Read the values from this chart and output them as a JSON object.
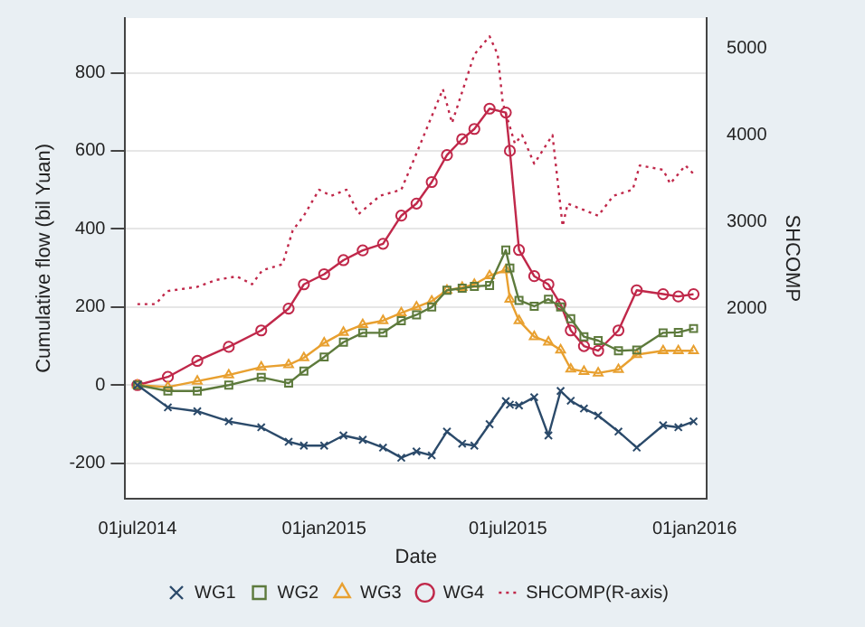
{
  "chart_data": {
    "type": "line",
    "xlabel": "Date",
    "ylabel": "Cumulative flow (bil Yuan)",
    "y2label": "SHCOMP",
    "x": [
      "2014-07-01",
      "2014-07-31",
      "2014-08-29",
      "2014-09-29",
      "2014-10-31",
      "2014-11-27",
      "2014-12-12",
      "2015-01-01",
      "2015-01-20",
      "2015-02-08",
      "2015-02-28",
      "2015-03-18",
      "2015-04-02",
      "2015-04-17",
      "2015-05-02",
      "2015-05-17",
      "2015-05-29",
      "2015-06-13",
      "2015-06-29",
      "2015-07-03",
      "2015-07-12",
      "2015-07-27",
      "2015-08-10",
      "2015-08-22",
      "2015-09-01",
      "2015-09-14",
      "2015-09-28",
      "2015-10-18",
      "2015-11-05",
      "2015-12-01",
      "2015-12-16",
      "2015-12-31"
    ],
    "series": [
      {
        "name": "WG1",
        "color": "#2b4a6a",
        "marker": "cross",
        "values": [
          0,
          -57,
          -67,
          -93,
          -108,
          -145,
          -155,
          -155,
          -129,
          -140,
          -160,
          -186,
          -170,
          -180,
          -119,
          -150,
          -155,
          -100,
          -41,
          -50,
          -52,
          -31,
          -129,
          -15,
          -40,
          -60,
          -78,
          -119,
          -160,
          -103,
          -108,
          -93
        ]
      },
      {
        "name": "WG2",
        "color": "#5d7a3c",
        "marker": "square",
        "values": [
          0,
          -15,
          -15,
          0,
          20,
          5,
          36,
          72,
          110,
          134,
          134,
          165,
          180,
          200,
          243,
          248,
          253,
          255,
          346,
          300,
          217,
          202,
          220,
          200,
          170,
          124,
          114,
          88,
          90,
          134,
          135,
          145
        ]
      },
      {
        "name": "WG3",
        "color": "#e8a030",
        "marker": "triangle",
        "values": [
          0,
          -5,
          10,
          26,
          46,
          52,
          70,
          108,
          135,
          155,
          165,
          185,
          200,
          215,
          243,
          250,
          258,
          280,
          295,
          220,
          165,
          124,
          110,
          90,
          41,
          35,
          31,
          40,
          78,
          88,
          88,
          88
        ]
      },
      {
        "name": "WG4",
        "color": "#c0284a",
        "marker": "circle",
        "values": [
          0,
          21,
          62,
          98,
          140,
          196,
          258,
          284,
          320,
          345,
          362,
          434,
          465,
          520,
          589,
          630,
          656,
          708,
          698,
          600,
          346,
          279,
          258,
          207,
          140,
          100,
          88,
          140,
          243,
          233,
          227,
          233
        ]
      },
      {
        "name": "SHCOMP(R-axis)",
        "color": "#c0284a",
        "marker": "none",
        "line_style": "dotted",
        "axis": "y2",
        "x": [
          "2014-07-01",
          "2014-07-19",
          "2014-07-30",
          "2014-08-29",
          "2014-09-17",
          "2014-10-07",
          "2014-10-22",
          "2014-11-01",
          "2014-11-21",
          "2014-12-01",
          "2014-12-12",
          "2014-12-27",
          "2015-01-08",
          "2015-01-23",
          "2015-02-04",
          "2015-02-25",
          "2015-03-18",
          "2015-04-02",
          "2015-04-28",
          "2015-05-07",
          "2015-05-29",
          "2015-06-13",
          "2015-06-21",
          "2015-06-26",
          "2015-07-08",
          "2015-07-15",
          "2015-07-27",
          "2015-08-14",
          "2015-08-24",
          "2015-08-29",
          "2015-09-28",
          "2015-10-13",
          "2015-11-01",
          "2015-11-08",
          "2015-12-01",
          "2015-12-08",
          "2015-12-23",
          "2016-01-01"
        ],
        "values": [
          2050,
          2050,
          2200,
          2250,
          2330,
          2370,
          2280,
          2440,
          2510,
          2900,
          3070,
          3370,
          3300,
          3370,
          3090,
          3300,
          3370,
          3790,
          4530,
          4140,
          4930,
          5140,
          4930,
          4370,
          3900,
          4000,
          3670,
          4000,
          2950,
          3210,
          3070,
          3300,
          3370,
          3650,
          3600,
          3440,
          3650,
          3540
        ]
      }
    ],
    "xlim": [
      "2014-06-19",
      "2016-01-13"
    ],
    "xticks": [
      {
        "value": "2014-07-01",
        "label": "01jul2014"
      },
      {
        "value": "2015-01-01",
        "label": "01jan2015"
      },
      {
        "value": "2015-07-01",
        "label": "01jul2015"
      },
      {
        "value": "2016-01-01",
        "label": "01jan2016"
      }
    ],
    "ylim": [
      -290,
      940
    ],
    "yticks": [
      -200,
      0,
      200,
      400,
      600,
      800
    ],
    "y2lim": [
      -190,
      5350
    ],
    "y2ticks": [
      2000,
      3000,
      4000,
      5000
    ],
    "grid": "y",
    "legend": "bottom"
  }
}
